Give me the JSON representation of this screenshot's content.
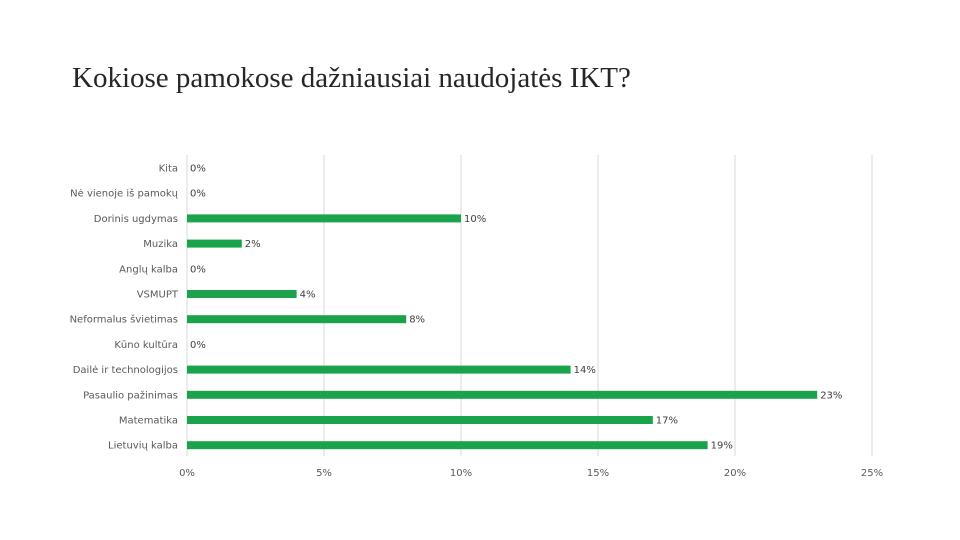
{
  "slide": {
    "title": "Kokiose pamokose dažniausiai naudojatės IKT?"
  },
  "colors": {
    "bar": "#1aa34a",
    "gridline": "#d9d9d9",
    "text": "#595959"
  },
  "chart_data": {
    "type": "bar",
    "orientation": "horizontal",
    "title": "",
    "xlabel": "",
    "ylabel": "",
    "categories": [
      "Kita",
      "Nė vienoje iš pamokų",
      "Dorinis ugdymas",
      "Muzika",
      "Anglų kalba",
      "VSMUPT",
      "Neformalus švietimas",
      "Kūno kultūra",
      "Dailė ir technologijos",
      "Pasaulio pažinimas",
      "Matematika",
      "Lietuvių kalba"
    ],
    "values": [
      0,
      0,
      10,
      2,
      0,
      4,
      8,
      0,
      14,
      23,
      17,
      19
    ],
    "data_labels": [
      "0%",
      "0%",
      "10%",
      "2%",
      "0%",
      "4%",
      "8%",
      "0%",
      "14%",
      "23%",
      "17%",
      "19%"
    ],
    "xlim": [
      0,
      25
    ],
    "x_ticks": [
      0,
      5,
      10,
      15,
      20,
      25
    ],
    "x_tick_labels": [
      "0%",
      "5%",
      "10%",
      "15%",
      "20%",
      "25%"
    ],
    "unit": "%",
    "grid": true,
    "legend": "none"
  }
}
